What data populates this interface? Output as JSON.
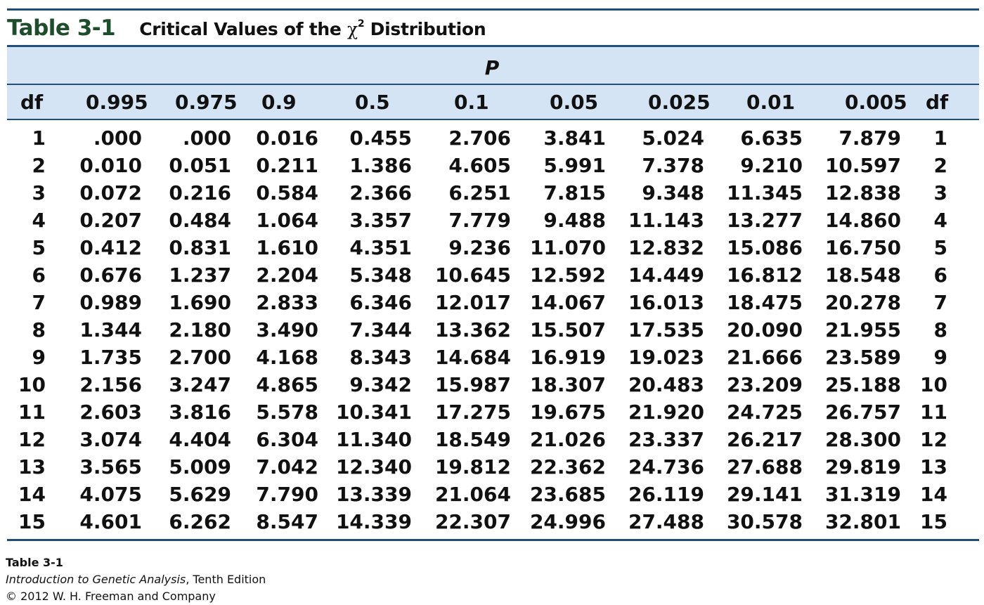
{
  "table_number": "Table 3-1",
  "title_prefix": "Critical Values of the ",
  "title_symbol": "χ",
  "title_superscript": "2",
  "title_suffix": " Distribution",
  "p_header": "P",
  "columns": [
    "df",
    "0.995",
    "0.975",
    "0.9",
    "0.5",
    "0.1",
    "0.05",
    "0.025",
    "0.01",
    "0.005",
    "df"
  ],
  "rows": [
    [
      "1",
      ".000",
      ".000",
      "0.016",
      "0.455",
      "2.706",
      "3.841",
      "5.024",
      "6.635",
      "7.879",
      "1"
    ],
    [
      "2",
      "0.010",
      "0.051",
      "0.211",
      "1.386",
      "4.605",
      "5.991",
      "7.378",
      "9.210",
      "10.597",
      "2"
    ],
    [
      "3",
      "0.072",
      "0.216",
      "0.584",
      "2.366",
      "6.251",
      "7.815",
      "9.348",
      "11.345",
      "12.838",
      "3"
    ],
    [
      "4",
      "0.207",
      "0.484",
      "1.064",
      "3.357",
      "7.779",
      "9.488",
      "11.143",
      "13.277",
      "14.860",
      "4"
    ],
    [
      "5",
      "0.412",
      "0.831",
      "1.610",
      "4.351",
      "9.236",
      "11.070",
      "12.832",
      "15.086",
      "16.750",
      "5"
    ],
    [
      "6",
      "0.676",
      "1.237",
      "2.204",
      "5.348",
      "10.645",
      "12.592",
      "14.449",
      "16.812",
      "18.548",
      "6"
    ],
    [
      "7",
      "0.989",
      "1.690",
      "2.833",
      "6.346",
      "12.017",
      "14.067",
      "16.013",
      "18.475",
      "20.278",
      "7"
    ],
    [
      "8",
      "1.344",
      "2.180",
      "3.490",
      "7.344",
      "13.362",
      "15.507",
      "17.535",
      "20.090",
      "21.955",
      "8"
    ],
    [
      "9",
      "1.735",
      "2.700",
      "4.168",
      "8.343",
      "14.684",
      "16.919",
      "19.023",
      "21.666",
      "23.589",
      "9"
    ],
    [
      "10",
      "2.156",
      "3.247",
      "4.865",
      "9.342",
      "15.987",
      "18.307",
      "20.483",
      "23.209",
      "25.188",
      "10"
    ],
    [
      "11",
      "2.603",
      "3.816",
      "5.578",
      "10.341",
      "17.275",
      "19.675",
      "21.920",
      "24.725",
      "26.757",
      "11"
    ],
    [
      "12",
      "3.074",
      "4.404",
      "6.304",
      "11.340",
      "18.549",
      "21.026",
      "23.337",
      "26.217",
      "28.300",
      "12"
    ],
    [
      "13",
      "3.565",
      "5.009",
      "7.042",
      "12.340",
      "19.812",
      "22.362",
      "24.736",
      "27.688",
      "29.819",
      "13"
    ],
    [
      "14",
      "4.075",
      "5.629",
      "7.790",
      "13.339",
      "21.064",
      "23.685",
      "26.119",
      "29.141",
      "31.319",
      "14"
    ],
    [
      "15",
      "4.601",
      "6.262",
      "8.547",
      "14.339",
      "22.307",
      "24.996",
      "27.488",
      "30.578",
      "32.801",
      "15"
    ]
  ],
  "footer": {
    "label": "Table 3-1",
    "book_title": "Introduction to Genetic Analysis",
    "edition": ", Tenth Edition",
    "copyright": "© 2012 W. H. Freeman and Company"
  },
  "colors": {
    "rule": "#1f4e79",
    "header_band": "#d5e4f4",
    "table_number": "#1e4d2b"
  }
}
